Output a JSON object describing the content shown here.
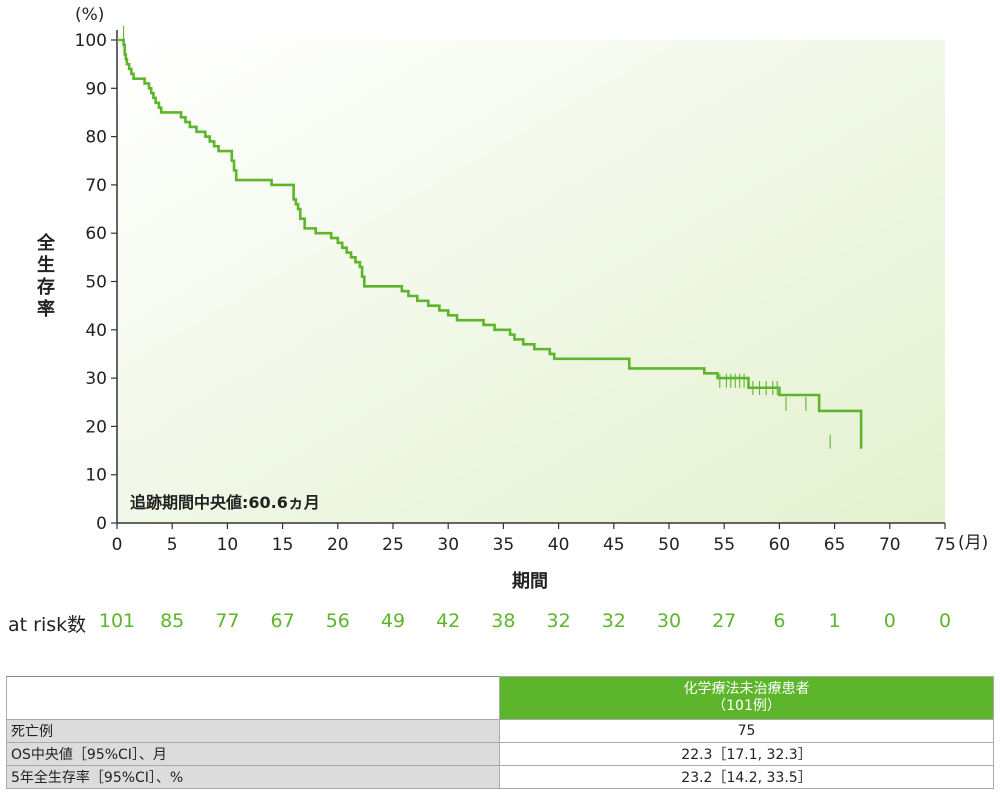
{
  "chart_data": {
    "type": "line",
    "unit_y": "(%)",
    "unit_x": "(月)",
    "ylabel": "全生存率",
    "xlabel": "期間",
    "xlim": [
      0,
      75
    ],
    "ylim": [
      0,
      100
    ],
    "xticks": [
      0,
      5,
      10,
      15,
      20,
      25,
      30,
      35,
      40,
      45,
      50,
      55,
      60,
      65,
      70,
      75
    ],
    "yticks": [
      0,
      10,
      20,
      30,
      40,
      50,
      60,
      70,
      80,
      90,
      100
    ],
    "annotation": "追跡期間中央値:60.6ヵ月",
    "series_color": "#5db52c",
    "series": [
      {
        "x": [
          0,
          0.6,
          0.7,
          0.8,
          0.9,
          1.1,
          1.3,
          1.5,
          2.5,
          2.9,
          3.1,
          3.3,
          3.5,
          3.8,
          4.0,
          4.2,
          5.8,
          6.2,
          6.6,
          7.2,
          8.0,
          8.4,
          8.8,
          9.2,
          10.4,
          10.6,
          10.8,
          13.0,
          14.0,
          16.0,
          16.2,
          16.4,
          16.6,
          17.0,
          18.0,
          19.4,
          20.0,
          20.4,
          20.8,
          21.2,
          21.6,
          22.0,
          22.2,
          22.4,
          25.8,
          26.4,
          27.2,
          28.2,
          29.2,
          30.0,
          30.8,
          33.2,
          34.2,
          35.6,
          36.0,
          36.8,
          37.8,
          39.2,
          39.6,
          46.4,
          53.2,
          54.4,
          57.2,
          60.0,
          63.6,
          67.4
        ],
        "y": [
          100,
          99,
          97,
          96,
          95,
          94,
          93,
          92,
          91,
          90,
          89,
          88,
          87,
          86,
          85,
          85,
          84,
          83,
          82,
          81,
          80,
          79,
          78,
          77,
          75,
          73,
          71,
          71,
          70,
          67,
          66,
          65,
          63,
          61,
          60,
          59,
          58,
          57,
          56,
          55,
          54,
          53,
          51,
          49,
          48,
          47,
          46,
          45,
          44,
          43,
          42,
          41,
          40,
          39,
          38,
          37,
          36,
          35,
          34,
          32,
          31,
          30,
          28,
          26.5,
          23.2,
          15.4
        ]
      }
    ],
    "censor_marks": [
      {
        "x": 0.6,
        "y": 100
      },
      {
        "x": 54.6,
        "y": 28
      },
      {
        "x": 55.2,
        "y": 28
      },
      {
        "x": 55.6,
        "y": 28
      },
      {
        "x": 56.0,
        "y": 28
      },
      {
        "x": 56.4,
        "y": 28
      },
      {
        "x": 56.8,
        "y": 28
      },
      {
        "x": 57.6,
        "y": 26.5
      },
      {
        "x": 58.2,
        "y": 26.5
      },
      {
        "x": 58.8,
        "y": 26.5
      },
      {
        "x": 59.4,
        "y": 26.5
      },
      {
        "x": 59.8,
        "y": 26.5
      },
      {
        "x": 60.6,
        "y": 23.2
      },
      {
        "x": 62.4,
        "y": 23.2
      },
      {
        "x": 64.6,
        "y": 15.4
      },
      {
        "x": 67.4,
        "y": 15.4
      }
    ],
    "risk_label": "at risk数",
    "at_risk": [
      101,
      85,
      77,
      67,
      56,
      49,
      42,
      38,
      32,
      32,
      30,
      27,
      6,
      1,
      0,
      0
    ]
  },
  "summary_table": {
    "column_header_line1": "化学療法未治療患者",
    "column_header_line2": "（101例）",
    "rows": [
      {
        "label": "死亡例",
        "value": "75"
      },
      {
        "label": "OS中央値［95%CI］、月",
        "value": "22.3［17.1, 32.3］"
      },
      {
        "label": "5年全生存率［95%CI］、%",
        "value": "23.2［14.2, 33.5］"
      }
    ]
  }
}
